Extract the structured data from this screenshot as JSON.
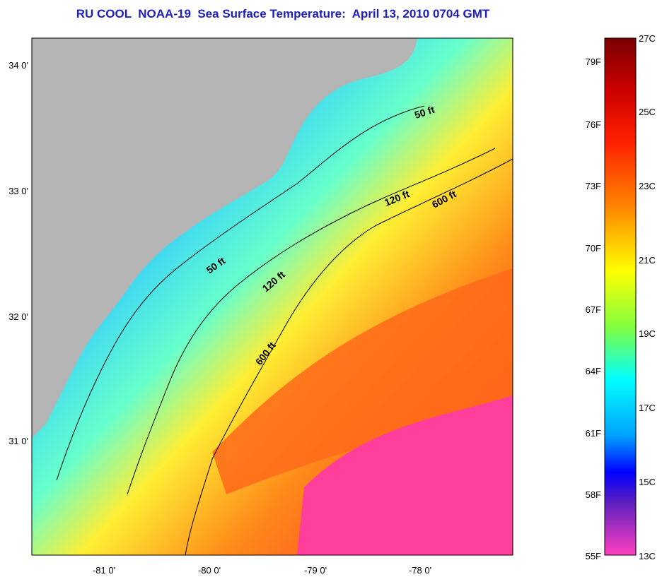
{
  "title": "RU COOL  NOAA-19  Sea Surface Temperature:  April 13, 2010 0704 GMT",
  "map": {
    "lat_labels": [
      "34 0'",
      "33 0'",
      "32 0'",
      "31 0'"
    ],
    "lon_labels": [
      "-81 0'",
      "-80 0'",
      "-79 0'",
      "-78 0'"
    ],
    "contour_labels": [
      "50 ft",
      "50 ft",
      "120 ft",
      "120 ft",
      "600 ft",
      "600 ft"
    ],
    "land_color": "#b4b4b4"
  },
  "colorbar": {
    "f_labels": [
      "79F",
      "76F",
      "73F",
      "70F",
      "67F",
      "64F",
      "61F",
      "58F",
      "55F"
    ],
    "c_labels": [
      "27C",
      "25C",
      "23C",
      "21C",
      "19C",
      "17C",
      "15C",
      "13C"
    ],
    "colors_top_to_bottom": [
      "#7a0000",
      "#ff0000",
      "#ff8000",
      "#ffff00",
      "#00ff80",
      "#00ffff",
      "#0080ff",
      "#0000ff",
      "#ff40c0"
    ]
  }
}
